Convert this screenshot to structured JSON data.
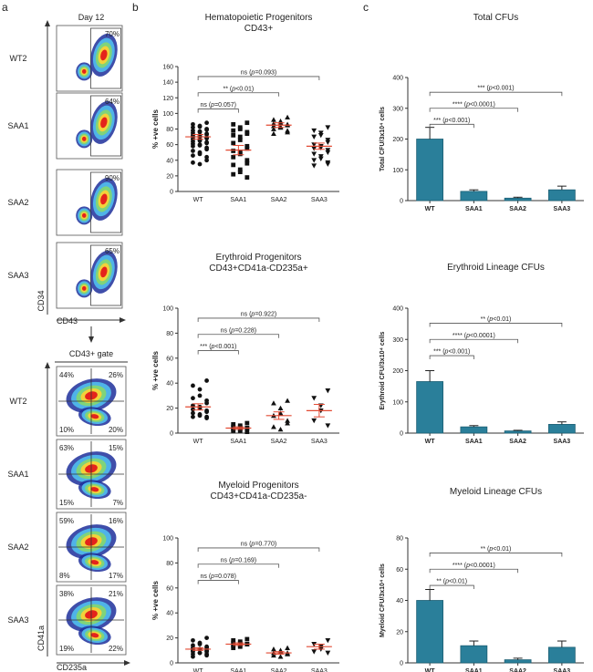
{
  "panel_a": {
    "letter": "a",
    "day_label": "Day 12",
    "gate_label": "CD43+ gate",
    "top_y_axis": "CD34",
    "top_x_axis": "CD43",
    "bottom_y_axis": "CD41a",
    "bottom_x_axis": "CD235a",
    "top_rows": [
      {
        "label": "WT2",
        "pct": "70%"
      },
      {
        "label": "SAA1",
        "pct": "64%"
      },
      {
        "label": "SAA2",
        "pct": "90%"
      },
      {
        "label": "SAA3",
        "pct": "65%"
      }
    ],
    "bottom_rows": [
      {
        "label": "WT2",
        "q": [
          "44%",
          "26%",
          "10%",
          "20%"
        ]
      },
      {
        "label": "SAA1",
        "q": [
          "63%",
          "15%",
          "15%",
          "7%"
        ]
      },
      {
        "label": "SAA2",
        "q": [
          "59%",
          "16%",
          "8%",
          "17%"
        ]
      },
      {
        "label": "SAA3",
        "q": [
          "38%",
          "21%",
          "19%",
          "22%"
        ]
      }
    ]
  },
  "panel_b": {
    "letter": "b"
  },
  "panel_c": {
    "letter": "c"
  },
  "chart_data": [
    {
      "id": "b1",
      "type": "scatter",
      "title": "Hematopoietic Progenitors",
      "subtitle": "CD43+",
      "ylabel": "% +ve cells",
      "ylim": [
        0,
        160
      ],
      "yticks": [
        0,
        20,
        40,
        60,
        80,
        100,
        120,
        140,
        160
      ],
      "categories": [
        "WT",
        "SAA1",
        "SAA2",
        "SAA3"
      ],
      "markers": [
        "circle",
        "square",
        "triangle-up",
        "triangle-down"
      ],
      "means": [
        70,
        53,
        85,
        58
      ],
      "sem": [
        3,
        6,
        3,
        4
      ],
      "points": [
        [
          88,
          86,
          84,
          83,
          82,
          80,
          79,
          78,
          77,
          76,
          75,
          74,
          73,
          72,
          71,
          70,
          70,
          69,
          68,
          67,
          66,
          65,
          64,
          63,
          62,
          61,
          60,
          59,
          58,
          56,
          54,
          52,
          50,
          48,
          46,
          44,
          40,
          37,
          35
        ],
        [
          88,
          86,
          82,
          80,
          78,
          76,
          74,
          72,
          70,
          66,
          62,
          58,
          55,
          52,
          50,
          48,
          44,
          40,
          36,
          34,
          28,
          25,
          22,
          18
        ],
        [
          95,
          92,
          90,
          88,
          87,
          86,
          85,
          84,
          83,
          82,
          80,
          78,
          76,
          74
        ],
        [
          82,
          78,
          75,
          72,
          70,
          66,
          63,
          60,
          58,
          56,
          55,
          53,
          50,
          48,
          45,
          42,
          40,
          37,
          35,
          33
        ]
      ],
      "comparisons": [
        {
          "label": "ns (p=0.057)",
          "to": 1
        },
        {
          "label": "** (p<0.01)",
          "to": 2
        },
        {
          "label": "ns (p=0.093)",
          "to": 3
        }
      ]
    },
    {
      "id": "b2",
      "type": "scatter",
      "title": "Erythroid Progenitors",
      "subtitle": "CD43+CD41a-CD235a+",
      "ylabel": "% +ve cells",
      "ylim": [
        0,
        100
      ],
      "yticks": [
        0,
        20,
        40,
        60,
        80,
        100
      ],
      "categories": [
        "WT",
        "SAA1",
        "SAA2",
        "SAA3"
      ],
      "markers": [
        "circle",
        "square",
        "triangle-up",
        "triangle-down"
      ],
      "means": [
        21,
        4,
        14,
        18
      ],
      "sem": [
        2.5,
        1,
        3,
        5
      ],
      "points": [
        [
          42,
          38,
          35,
          30,
          28,
          26,
          24,
          22,
          21,
          20,
          19,
          18,
          17,
          16,
          15,
          14,
          13,
          13,
          12
        ],
        [
          8,
          7,
          6,
          5,
          5,
          4,
          4,
          3,
          3,
          2,
          2,
          1
        ],
        [
          26,
          24,
          20,
          16,
          14,
          10,
          8,
          5,
          3
        ],
        [
          34,
          28,
          22,
          18,
          10,
          6
        ]
      ],
      "comparisons": [
        {
          "label": "*** (p<0.001)",
          "to": 1
        },
        {
          "label": "ns (p=0.228)",
          "to": 2
        },
        {
          "label": "ns (p=0.922)",
          "to": 3
        }
      ]
    },
    {
      "id": "b3",
      "type": "scatter",
      "title": "Myeloid Progenitors",
      "subtitle": "CD43+CD41a-CD235a-",
      "ylabel": "% +ve cells",
      "ylim": [
        0,
        100
      ],
      "yticks": [
        0,
        20,
        40,
        60,
        80,
        100
      ],
      "categories": [
        "WT",
        "SAA1",
        "SAA2",
        "SAA3"
      ],
      "markers": [
        "circle",
        "square",
        "triangle-up",
        "triangle-down"
      ],
      "means": [
        11,
        15,
        8,
        13
      ],
      "sem": [
        1,
        1,
        1,
        2
      ],
      "points": [
        [
          20,
          18,
          16,
          15,
          14,
          13,
          12,
          12,
          11,
          11,
          10,
          10,
          9,
          9,
          8,
          8,
          7,
          7,
          6,
          5
        ],
        [
          19,
          18,
          17,
          16,
          16,
          15,
          15,
          14,
          14,
          13,
          12
        ],
        [
          12,
          11,
          10,
          9,
          8,
          8,
          7,
          6,
          5
        ],
        [
          18,
          15,
          13,
          11,
          9,
          8
        ]
      ],
      "comparisons": [
        {
          "label": "ns (p=0.078)",
          "to": 1
        },
        {
          "label": "ns (p=0.169)",
          "to": 2
        },
        {
          "label": "ns (p=0.770)",
          "to": 3
        }
      ]
    },
    {
      "id": "c1",
      "type": "bar",
      "title": "Total CFUs",
      "ylabel": "Total CFU/3x10⁴ cells",
      "ylim": [
        0,
        400
      ],
      "yticks": [
        0,
        100,
        200,
        300,
        400
      ],
      "categories": [
        "WT",
        "SAA1",
        "SAA2",
        "SAA3"
      ],
      "values": [
        200,
        30,
        8,
        35
      ],
      "errors": [
        38,
        5,
        3,
        12
      ],
      "comparisons": [
        {
          "label": "*** (p<0.001)",
          "to": 1
        },
        {
          "label": "**** (p<0.0001)",
          "to": 2
        },
        {
          "label": "*** (p<0.001)",
          "to": 3
        }
      ]
    },
    {
      "id": "c2",
      "type": "bar",
      "title": "Erythroid Lineage CFUs",
      "ylabel": "Erythroid CFU/3x10⁴ cells",
      "ylim": [
        0,
        400
      ],
      "yticks": [
        0,
        100,
        200,
        300,
        400
      ],
      "categories": [
        "WT",
        "SAA1",
        "SAA2",
        "SAA3"
      ],
      "values": [
        165,
        20,
        7,
        28
      ],
      "errors": [
        35,
        4,
        2,
        8
      ],
      "comparisons": [
        {
          "label": "*** (p<0.001)",
          "to": 1
        },
        {
          "label": "**** (p<0.0001)",
          "to": 2
        },
        {
          "label": "** (p<0.01)",
          "to": 3
        }
      ]
    },
    {
      "id": "c3",
      "type": "bar",
      "title": "Myeloid Lineage CFUs",
      "ylabel": "Myeloid CFU/3x10⁴ cells",
      "ylim": [
        0,
        80
      ],
      "yticks": [
        0,
        20,
        40,
        60,
        80
      ],
      "categories": [
        "WT",
        "SAA1",
        "SAA2",
        "SAA3"
      ],
      "values": [
        40,
        11,
        2,
        10
      ],
      "errors": [
        7,
        3,
        1,
        4
      ],
      "comparisons": [
        {
          "label": "** (p<0.01)",
          "to": 1
        },
        {
          "label": "**** (p<0.0001)",
          "to": 2
        },
        {
          "label": "** (p<0.01)",
          "to": 3
        }
      ]
    }
  ],
  "colors": {
    "bar_fill": "#2a7f9a",
    "mean_line": "#e24a33",
    "axis": "#333333",
    "facs_outer": "#1d2f9b",
    "facs_mid": "#4fb3e8",
    "facs_mid2": "#7fd47a",
    "facs_hot": "#f2d23a",
    "facs_core": "#e4231b"
  }
}
